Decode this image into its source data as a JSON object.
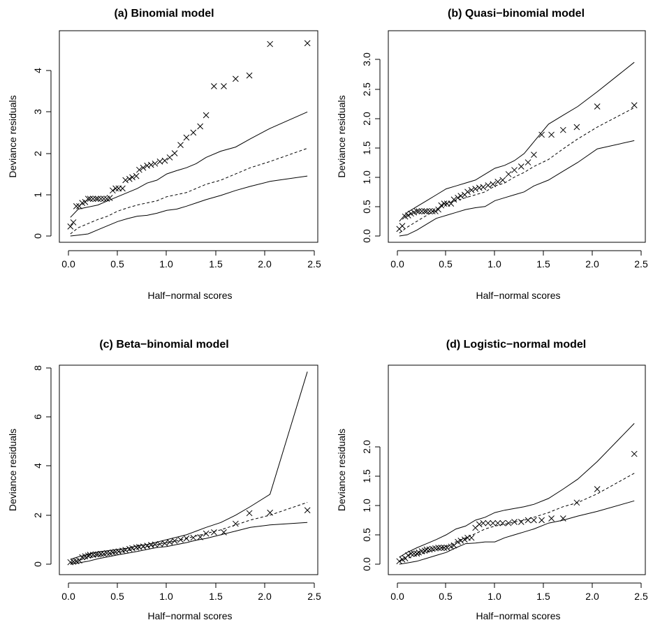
{
  "chart_data": [
    {
      "type": "scatter",
      "title": "(a) Binomial model",
      "xlabel": "Half−normal scores",
      "ylabel": "Deviance residuals",
      "xlim": [
        0,
        2.45
      ],
      "ylim": [
        0,
        4.7
      ],
      "xticks": [
        "0.0",
        "0.5",
        "1.0",
        "1.5",
        "2.0",
        "2.5"
      ],
      "yticks": [
        "0",
        "1",
        "2",
        "3",
        "4"
      ],
      "series": [
        {
          "role": "observed",
          "marker": "x",
          "x": [
            0.02,
            0.05,
            0.08,
            0.11,
            0.14,
            0.17,
            0.2,
            0.22,
            0.25,
            0.28,
            0.3,
            0.33,
            0.36,
            0.39,
            0.42,
            0.45,
            0.48,
            0.51,
            0.55,
            0.58,
            0.62,
            0.65,
            0.69,
            0.72,
            0.76,
            0.8,
            0.84,
            0.88,
            0.93,
            0.98,
            1.03,
            1.08,
            1.14,
            1.2,
            1.27,
            1.34,
            1.4,
            1.48,
            1.58,
            1.7,
            1.84,
            2.05,
            2.43
          ],
          "y": [
            0.23,
            0.33,
            0.72,
            0.72,
            0.8,
            0.82,
            0.9,
            0.9,
            0.9,
            0.9,
            0.9,
            0.9,
            0.9,
            0.9,
            0.92,
            1.1,
            1.15,
            1.15,
            1.15,
            1.35,
            1.38,
            1.42,
            1.45,
            1.6,
            1.65,
            1.7,
            1.72,
            1.75,
            1.8,
            1.82,
            1.9,
            2.0,
            2.2,
            2.38,
            2.5,
            2.65,
            2.92,
            3.62,
            3.62,
            3.8,
            3.88,
            4.64,
            4.66
          ]
        },
        {
          "role": "upper envelope",
          "line": "solid",
          "x": [
            0.02,
            0.1,
            0.2,
            0.3,
            0.4,
            0.5,
            0.6,
            0.7,
            0.8,
            0.9,
            1.0,
            1.1,
            1.2,
            1.3,
            1.4,
            1.55,
            1.7,
            1.85,
            2.05,
            2.43
          ],
          "y": [
            0.45,
            0.65,
            0.7,
            0.75,
            0.85,
            0.95,
            1.05,
            1.15,
            1.28,
            1.35,
            1.5,
            1.58,
            1.65,
            1.75,
            1.9,
            2.05,
            2.15,
            2.35,
            2.6,
            3.0
          ]
        },
        {
          "role": "median",
          "line": "dashed",
          "x": [
            0.02,
            0.1,
            0.2,
            0.3,
            0.4,
            0.5,
            0.6,
            0.7,
            0.8,
            0.9,
            1.0,
            1.1,
            1.2,
            1.3,
            1.4,
            1.55,
            1.7,
            1.85,
            2.05,
            2.43
          ],
          "y": [
            0.05,
            0.2,
            0.3,
            0.4,
            0.48,
            0.6,
            0.68,
            0.75,
            0.8,
            0.85,
            0.95,
            1.0,
            1.05,
            1.15,
            1.25,
            1.35,
            1.5,
            1.65,
            1.8,
            2.12
          ]
        },
        {
          "role": "lower envelope",
          "line": "solid",
          "x": [
            0.02,
            0.1,
            0.2,
            0.3,
            0.4,
            0.5,
            0.6,
            0.7,
            0.8,
            0.9,
            1.0,
            1.1,
            1.2,
            1.3,
            1.4,
            1.55,
            1.7,
            1.85,
            2.05,
            2.43
          ],
          "y": [
            0.0,
            0.02,
            0.05,
            0.15,
            0.25,
            0.35,
            0.42,
            0.48,
            0.5,
            0.55,
            0.62,
            0.65,
            0.72,
            0.8,
            0.88,
            0.98,
            1.1,
            1.2,
            1.32,
            1.45
          ]
        }
      ]
    },
    {
      "type": "scatter",
      "title": "(b) Quasi−binomial model",
      "xlabel": "Half−normal scores",
      "ylabel": "Deviance residuals",
      "xlim": [
        0,
        2.45
      ],
      "ylim": [
        0,
        3.0
      ],
      "xticks": [
        "0.0",
        "0.5",
        "1.0",
        "1.5",
        "2.0",
        "2.5"
      ],
      "yticks": [
        "0.0",
        "0.5",
        "1.0",
        "1.5",
        "2.0",
        "2.5",
        "3.0"
      ],
      "series": [
        {
          "role": "observed",
          "marker": "x",
          "x": [
            0.02,
            0.05,
            0.08,
            0.11,
            0.14,
            0.17,
            0.2,
            0.22,
            0.25,
            0.28,
            0.3,
            0.33,
            0.36,
            0.39,
            0.42,
            0.45,
            0.48,
            0.51,
            0.55,
            0.58,
            0.62,
            0.65,
            0.69,
            0.72,
            0.76,
            0.8,
            0.84,
            0.88,
            0.93,
            0.98,
            1.03,
            1.08,
            1.14,
            1.2,
            1.27,
            1.34,
            1.4,
            1.48,
            1.58,
            1.7,
            1.84,
            2.05,
            2.43
          ],
          "y": [
            0.12,
            0.17,
            0.33,
            0.35,
            0.38,
            0.4,
            0.42,
            0.42,
            0.42,
            0.42,
            0.42,
            0.42,
            0.42,
            0.42,
            0.45,
            0.52,
            0.55,
            0.55,
            0.55,
            0.62,
            0.65,
            0.68,
            0.7,
            0.75,
            0.78,
            0.8,
            0.82,
            0.83,
            0.86,
            0.88,
            0.92,
            0.95,
            1.05,
            1.12,
            1.18,
            1.25,
            1.38,
            1.72,
            1.72,
            1.8,
            1.85,
            2.2,
            2.22
          ]
        },
        {
          "role": "upper envelope",
          "line": "solid",
          "x": [
            0.02,
            0.1,
            0.2,
            0.3,
            0.4,
            0.5,
            0.6,
            0.7,
            0.8,
            0.9,
            1.0,
            1.1,
            1.2,
            1.3,
            1.4,
            1.55,
            1.7,
            1.85,
            2.05,
            2.43
          ],
          "y": [
            0.25,
            0.4,
            0.5,
            0.6,
            0.7,
            0.8,
            0.85,
            0.9,
            0.95,
            1.05,
            1.15,
            1.2,
            1.28,
            1.4,
            1.6,
            1.9,
            2.05,
            2.2,
            2.45,
            2.95
          ]
        },
        {
          "role": "median",
          "line": "dashed",
          "x": [
            0.02,
            0.1,
            0.2,
            0.3,
            0.4,
            0.5,
            0.6,
            0.7,
            0.8,
            0.9,
            1.0,
            1.1,
            1.2,
            1.3,
            1.4,
            1.55,
            1.7,
            1.85,
            2.05,
            2.43
          ],
          "y": [
            0.05,
            0.15,
            0.25,
            0.35,
            0.45,
            0.55,
            0.6,
            0.65,
            0.7,
            0.75,
            0.85,
            0.9,
            1.0,
            1.08,
            1.18,
            1.3,
            1.48,
            1.65,
            1.85,
            2.18
          ]
        },
        {
          "role": "lower envelope",
          "line": "solid",
          "x": [
            0.02,
            0.1,
            0.2,
            0.3,
            0.4,
            0.5,
            0.6,
            0.7,
            0.8,
            0.9,
            1.0,
            1.1,
            1.2,
            1.3,
            1.4,
            1.55,
            1.7,
            1.85,
            2.05,
            2.43
          ],
          "y": [
            0.0,
            0.02,
            0.1,
            0.2,
            0.3,
            0.35,
            0.4,
            0.45,
            0.48,
            0.5,
            0.6,
            0.65,
            0.7,
            0.75,
            0.85,
            0.95,
            1.1,
            1.25,
            1.48,
            1.62
          ]
        }
      ]
    },
    {
      "type": "scatter",
      "title": "(c) Beta−binomial model",
      "xlabel": "Half−normal scores",
      "ylabel": "Deviance residuals",
      "xlim": [
        0,
        2.45
      ],
      "ylim": [
        0,
        8.0
      ],
      "xticks": [
        "0.0",
        "0.5",
        "1.0",
        "1.5",
        "2.0",
        "2.5"
      ],
      "yticks": [
        "0",
        "2",
        "4",
        "6",
        "8"
      ],
      "series": [
        {
          "role": "observed",
          "marker": "x",
          "x": [
            0.02,
            0.05,
            0.08,
            0.11,
            0.14,
            0.17,
            0.2,
            0.22,
            0.25,
            0.28,
            0.3,
            0.33,
            0.36,
            0.39,
            0.42,
            0.45,
            0.48,
            0.51,
            0.55,
            0.58,
            0.62,
            0.65,
            0.69,
            0.72,
            0.76,
            0.8,
            0.84,
            0.88,
            0.93,
            0.98,
            1.03,
            1.08,
            1.14,
            1.2,
            1.27,
            1.34,
            1.4,
            1.48,
            1.58,
            1.7,
            1.84,
            2.05,
            2.43
          ],
          "y": [
            0.08,
            0.1,
            0.12,
            0.15,
            0.28,
            0.32,
            0.35,
            0.38,
            0.38,
            0.4,
            0.4,
            0.42,
            0.42,
            0.45,
            0.45,
            0.48,
            0.5,
            0.52,
            0.55,
            0.58,
            0.62,
            0.65,
            0.68,
            0.7,
            0.72,
            0.75,
            0.78,
            0.8,
            0.82,
            0.85,
            0.9,
            0.95,
            1.0,
            1.05,
            1.08,
            1.1,
            1.25,
            1.3,
            1.3,
            1.65,
            2.08,
            2.1,
            2.2
          ]
        },
        {
          "role": "upper envelope",
          "line": "solid",
          "x": [
            0.02,
            0.1,
            0.2,
            0.3,
            0.4,
            0.5,
            0.6,
            0.7,
            0.8,
            0.9,
            1.0,
            1.1,
            1.2,
            1.3,
            1.4,
            1.55,
            1.7,
            1.85,
            2.05,
            2.43
          ],
          "y": [
            0.2,
            0.3,
            0.4,
            0.5,
            0.55,
            0.6,
            0.65,
            0.75,
            0.8,
            0.9,
            1.0,
            1.1,
            1.2,
            1.35,
            1.5,
            1.7,
            2.0,
            2.35,
            2.85,
            7.85
          ]
        },
        {
          "role": "median",
          "line": "dashed",
          "x": [
            0.02,
            0.1,
            0.2,
            0.3,
            0.4,
            0.5,
            0.6,
            0.7,
            0.8,
            0.9,
            1.0,
            1.1,
            1.2,
            1.3,
            1.4,
            1.55,
            1.7,
            1.85,
            2.05,
            2.43
          ],
          "y": [
            0.05,
            0.15,
            0.25,
            0.35,
            0.42,
            0.5,
            0.56,
            0.65,
            0.72,
            0.8,
            0.88,
            0.95,
            1.05,
            1.15,
            1.25,
            1.4,
            1.6,
            1.8,
            2.0,
            2.52
          ]
        },
        {
          "role": "lower envelope",
          "line": "solid",
          "x": [
            0.02,
            0.1,
            0.2,
            0.3,
            0.4,
            0.5,
            0.6,
            0.7,
            0.8,
            0.9,
            1.0,
            1.1,
            1.2,
            1.3,
            1.4,
            1.55,
            1.7,
            1.85,
            2.05,
            2.43
          ],
          "y": [
            0.0,
            0.05,
            0.12,
            0.22,
            0.3,
            0.38,
            0.45,
            0.52,
            0.6,
            0.68,
            0.72,
            0.8,
            0.88,
            0.98,
            1.05,
            1.2,
            1.35,
            1.5,
            1.6,
            1.7
          ]
        }
      ]
    },
    {
      "type": "scatter",
      "title": "(d) Logistic−normal model",
      "xlabel": "Half−normal scores",
      "ylabel": "Deviance residuals",
      "xlim": [
        0,
        2.45
      ],
      "ylim": [
        0,
        2.4
      ],
      "xticks": [
        "0.0",
        "0.5",
        "1.0",
        "1.5",
        "2.0",
        "2.5"
      ],
      "yticks": [
        "0.0",
        "0.5",
        "1.0",
        "1.5",
        "2.0"
      ],
      "series": [
        {
          "role": "observed",
          "marker": "x",
          "x": [
            0.02,
            0.05,
            0.08,
            0.11,
            0.14,
            0.17,
            0.2,
            0.22,
            0.25,
            0.28,
            0.3,
            0.33,
            0.36,
            0.39,
            0.42,
            0.45,
            0.48,
            0.51,
            0.55,
            0.58,
            0.62,
            0.65,
            0.69,
            0.72,
            0.76,
            0.8,
            0.84,
            0.88,
            0.93,
            0.98,
            1.03,
            1.08,
            1.14,
            1.2,
            1.27,
            1.34,
            1.4,
            1.48,
            1.58,
            1.7,
            1.84,
            2.05,
            2.43
          ],
          "y": [
            0.05,
            0.08,
            0.1,
            0.15,
            0.18,
            0.18,
            0.18,
            0.2,
            0.22,
            0.23,
            0.25,
            0.25,
            0.26,
            0.27,
            0.28,
            0.28,
            0.28,
            0.28,
            0.3,
            0.32,
            0.38,
            0.4,
            0.42,
            0.45,
            0.45,
            0.62,
            0.68,
            0.7,
            0.7,
            0.7,
            0.7,
            0.7,
            0.7,
            0.72,
            0.72,
            0.75,
            0.75,
            0.75,
            0.78,
            0.78,
            1.05,
            1.28,
            1.88
          ]
        },
        {
          "role": "upper envelope",
          "line": "solid",
          "x": [
            0.02,
            0.1,
            0.2,
            0.3,
            0.4,
            0.5,
            0.6,
            0.7,
            0.8,
            0.9,
            1.0,
            1.1,
            1.2,
            1.3,
            1.4,
            1.55,
            1.7,
            1.85,
            2.05,
            2.43
          ],
          "y": [
            0.12,
            0.2,
            0.28,
            0.35,
            0.42,
            0.5,
            0.6,
            0.65,
            0.75,
            0.8,
            0.88,
            0.92,
            0.95,
            0.98,
            1.02,
            1.12,
            1.28,
            1.45,
            1.75,
            2.4
          ]
        },
        {
          "role": "median",
          "line": "dashed",
          "x": [
            0.02,
            0.1,
            0.2,
            0.3,
            0.4,
            0.5,
            0.6,
            0.7,
            0.8,
            0.9,
            1.0,
            1.1,
            1.2,
            1.3,
            1.4,
            1.55,
            1.7,
            1.85,
            2.05,
            2.43
          ],
          "y": [
            0.05,
            0.1,
            0.15,
            0.2,
            0.25,
            0.3,
            0.38,
            0.45,
            0.52,
            0.6,
            0.65,
            0.68,
            0.72,
            0.75,
            0.8,
            0.88,
            0.98,
            1.05,
            1.2,
            1.55
          ]
        },
        {
          "role": "lower envelope",
          "line": "solid",
          "x": [
            0.02,
            0.1,
            0.2,
            0.3,
            0.4,
            0.5,
            0.6,
            0.7,
            0.8,
            0.9,
            1.0,
            1.1,
            1.2,
            1.3,
            1.4,
            1.55,
            1.7,
            1.85,
            2.05,
            2.43
          ],
          "y": [
            0.0,
            0.02,
            0.05,
            0.1,
            0.15,
            0.2,
            0.28,
            0.35,
            0.36,
            0.38,
            0.38,
            0.45,
            0.5,
            0.55,
            0.6,
            0.7,
            0.75,
            0.82,
            0.9,
            1.08
          ]
        }
      ]
    }
  ]
}
